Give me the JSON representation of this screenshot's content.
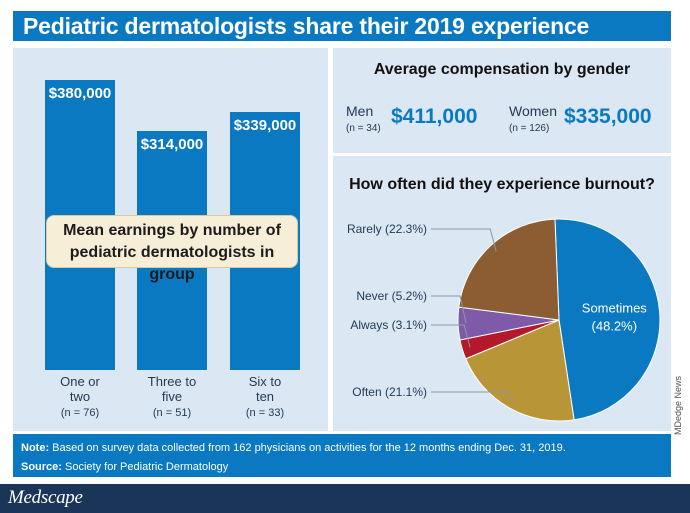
{
  "title": "Pediatric dermatologists share their 2019 experience",
  "colors": {
    "accent": "#0a79c2",
    "panel_bg": "#dbe8f3",
    "footer_bg": "#1a3558",
    "pie_sometimes": "#0a79c2",
    "pie_often": "#b89637",
    "pie_always": "#b3182b",
    "pie_never": "#7f5aa8",
    "pie_rarely": "#8c5d32"
  },
  "chart_data": [
    {
      "type": "bar",
      "annotation": "Mean earnings by number of pediatric dermatologists in group",
      "annotation_line1": "Mean earnings by number of",
      "annotation_line2": "pediatric dermatologists in group",
      "categories": [
        "One or two",
        "Three to five",
        "Six to ten"
      ],
      "category_lines": [
        [
          "One or",
          "two"
        ],
        [
          "Three to",
          "five"
        ],
        [
          "Six to",
          "ten"
        ]
      ],
      "sample_sizes": [
        "(n = 76)",
        "(n = 51)",
        "(n = 33)"
      ],
      "values": [
        380000,
        314000,
        339000
      ],
      "value_labels": [
        "$380,000",
        "$314,000",
        "$339,000"
      ],
      "ylim": [
        0,
        400000
      ]
    },
    {
      "type": "table",
      "title": "Average compensation by gender",
      "rows": [
        {
          "label": "Men",
          "n": "(n = 34)",
          "value": "$411,000"
        },
        {
          "label": "Women",
          "n": "(n = 126)",
          "value": "$335,000"
        }
      ]
    },
    {
      "type": "pie",
      "title": "How often did they experience burnout?",
      "slices": [
        {
          "label": "Sometimes (48.2%)",
          "line1": "Sometimes",
          "line2": "(48.2%)",
          "value": 48.2,
          "color": "#0a79c2"
        },
        {
          "label": "Often (21.1%)",
          "value": 21.1,
          "color": "#b89637"
        },
        {
          "label": "Always (3.1%)",
          "value": 3.1,
          "color": "#b3182b"
        },
        {
          "label": "Never (5.2%)",
          "value": 5.2,
          "color": "#7f5aa8"
        },
        {
          "label": "Rarely (22.3%)",
          "value": 22.3,
          "color": "#8c5d32"
        }
      ]
    }
  ],
  "credit": "MDedge News",
  "note": {
    "label": "Note:",
    "text": "Based on survey data collected from 162 physicians on activities for the 12 months ending Dec. 31, 2019."
  },
  "source": {
    "label": "Source:",
    "text": "Society for Pediatric Dermatology"
  },
  "logo": "Medscape"
}
